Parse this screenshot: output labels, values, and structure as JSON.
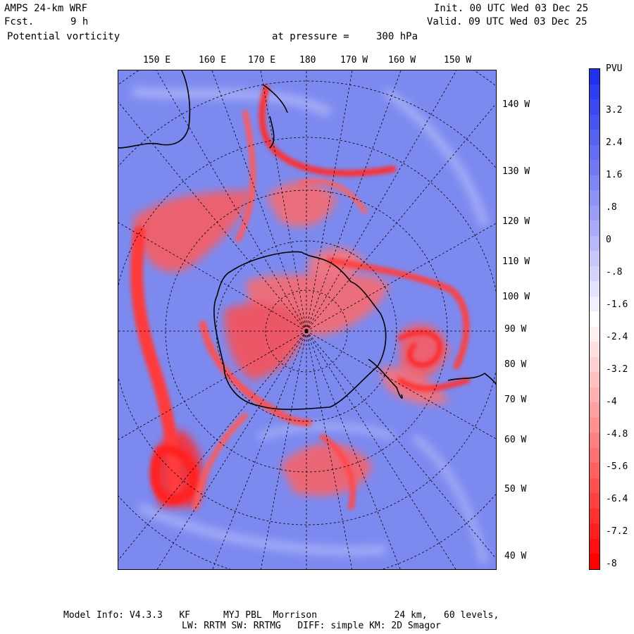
{
  "header": {
    "model": "AMPS 24-km WRF",
    "forecast_label": "Fcst.",
    "forecast_value": "9 h",
    "field": "Potential vorticity",
    "level_label": "at pressure =",
    "level_value": "300 hPa",
    "init": "Init. 00 UTC Wed 03 Dec 25",
    "valid": "Valid. 09 UTC Wed 03 Dec 25"
  },
  "map": {
    "top_lon_labels": [
      "150 E",
      "160 E",
      "170 E",
      "180",
      "170 W",
      "160 W",
      "150 W"
    ],
    "right_lon_labels": [
      "140 W",
      "130 W",
      "120 W",
      "110 W",
      "100 W",
      "90 W",
      "80 W",
      "70 W",
      "60 W",
      "50 W",
      "40 W"
    ]
  },
  "colorbar": {
    "unit": "PVU",
    "labels": [
      "3.2",
      "2.4",
      "1.6",
      ".8",
      "0",
      "-.8",
      "-1.6",
      "-2.4",
      "-3.2",
      "-4",
      "-4.8",
      "-5.6",
      "-6.4",
      "-7.2",
      "-8"
    ],
    "colors": [
      "#1e32f0",
      "#2c3ef0",
      "#3a4af0",
      "#4856f0",
      "#5662f0",
      "#646ef2",
      "#727af2",
      "#8086f4",
      "#8e92f4",
      "#9c9ef6",
      "#aaaaf6",
      "#b8b8f8",
      "#c6c6fa",
      "#d4d4fa",
      "#e2e2fc",
      "#f0f0fe",
      "#ffffff",
      "#fff0f0",
      "#ffe0e0",
      "#ffd0d0",
      "#ffc0c0",
      "#ffb0b0",
      "#ffa0a0",
      "#ff9090",
      "#ff8080",
      "#ff7070",
      "#ff6060",
      "#ff5050",
      "#ff4040",
      "#ff3030",
      "#ff2020",
      "#ff1010",
      "#ff0000"
    ]
  },
  "footer": {
    "line1": "Model Info: V4.3.3   KF      MYJ PBL  Morrison              24 km,   60 levels,",
    "line2": "LW: RRTM SW: RRTMG   DIFF: simple KM: 2D Smagor"
  }
}
